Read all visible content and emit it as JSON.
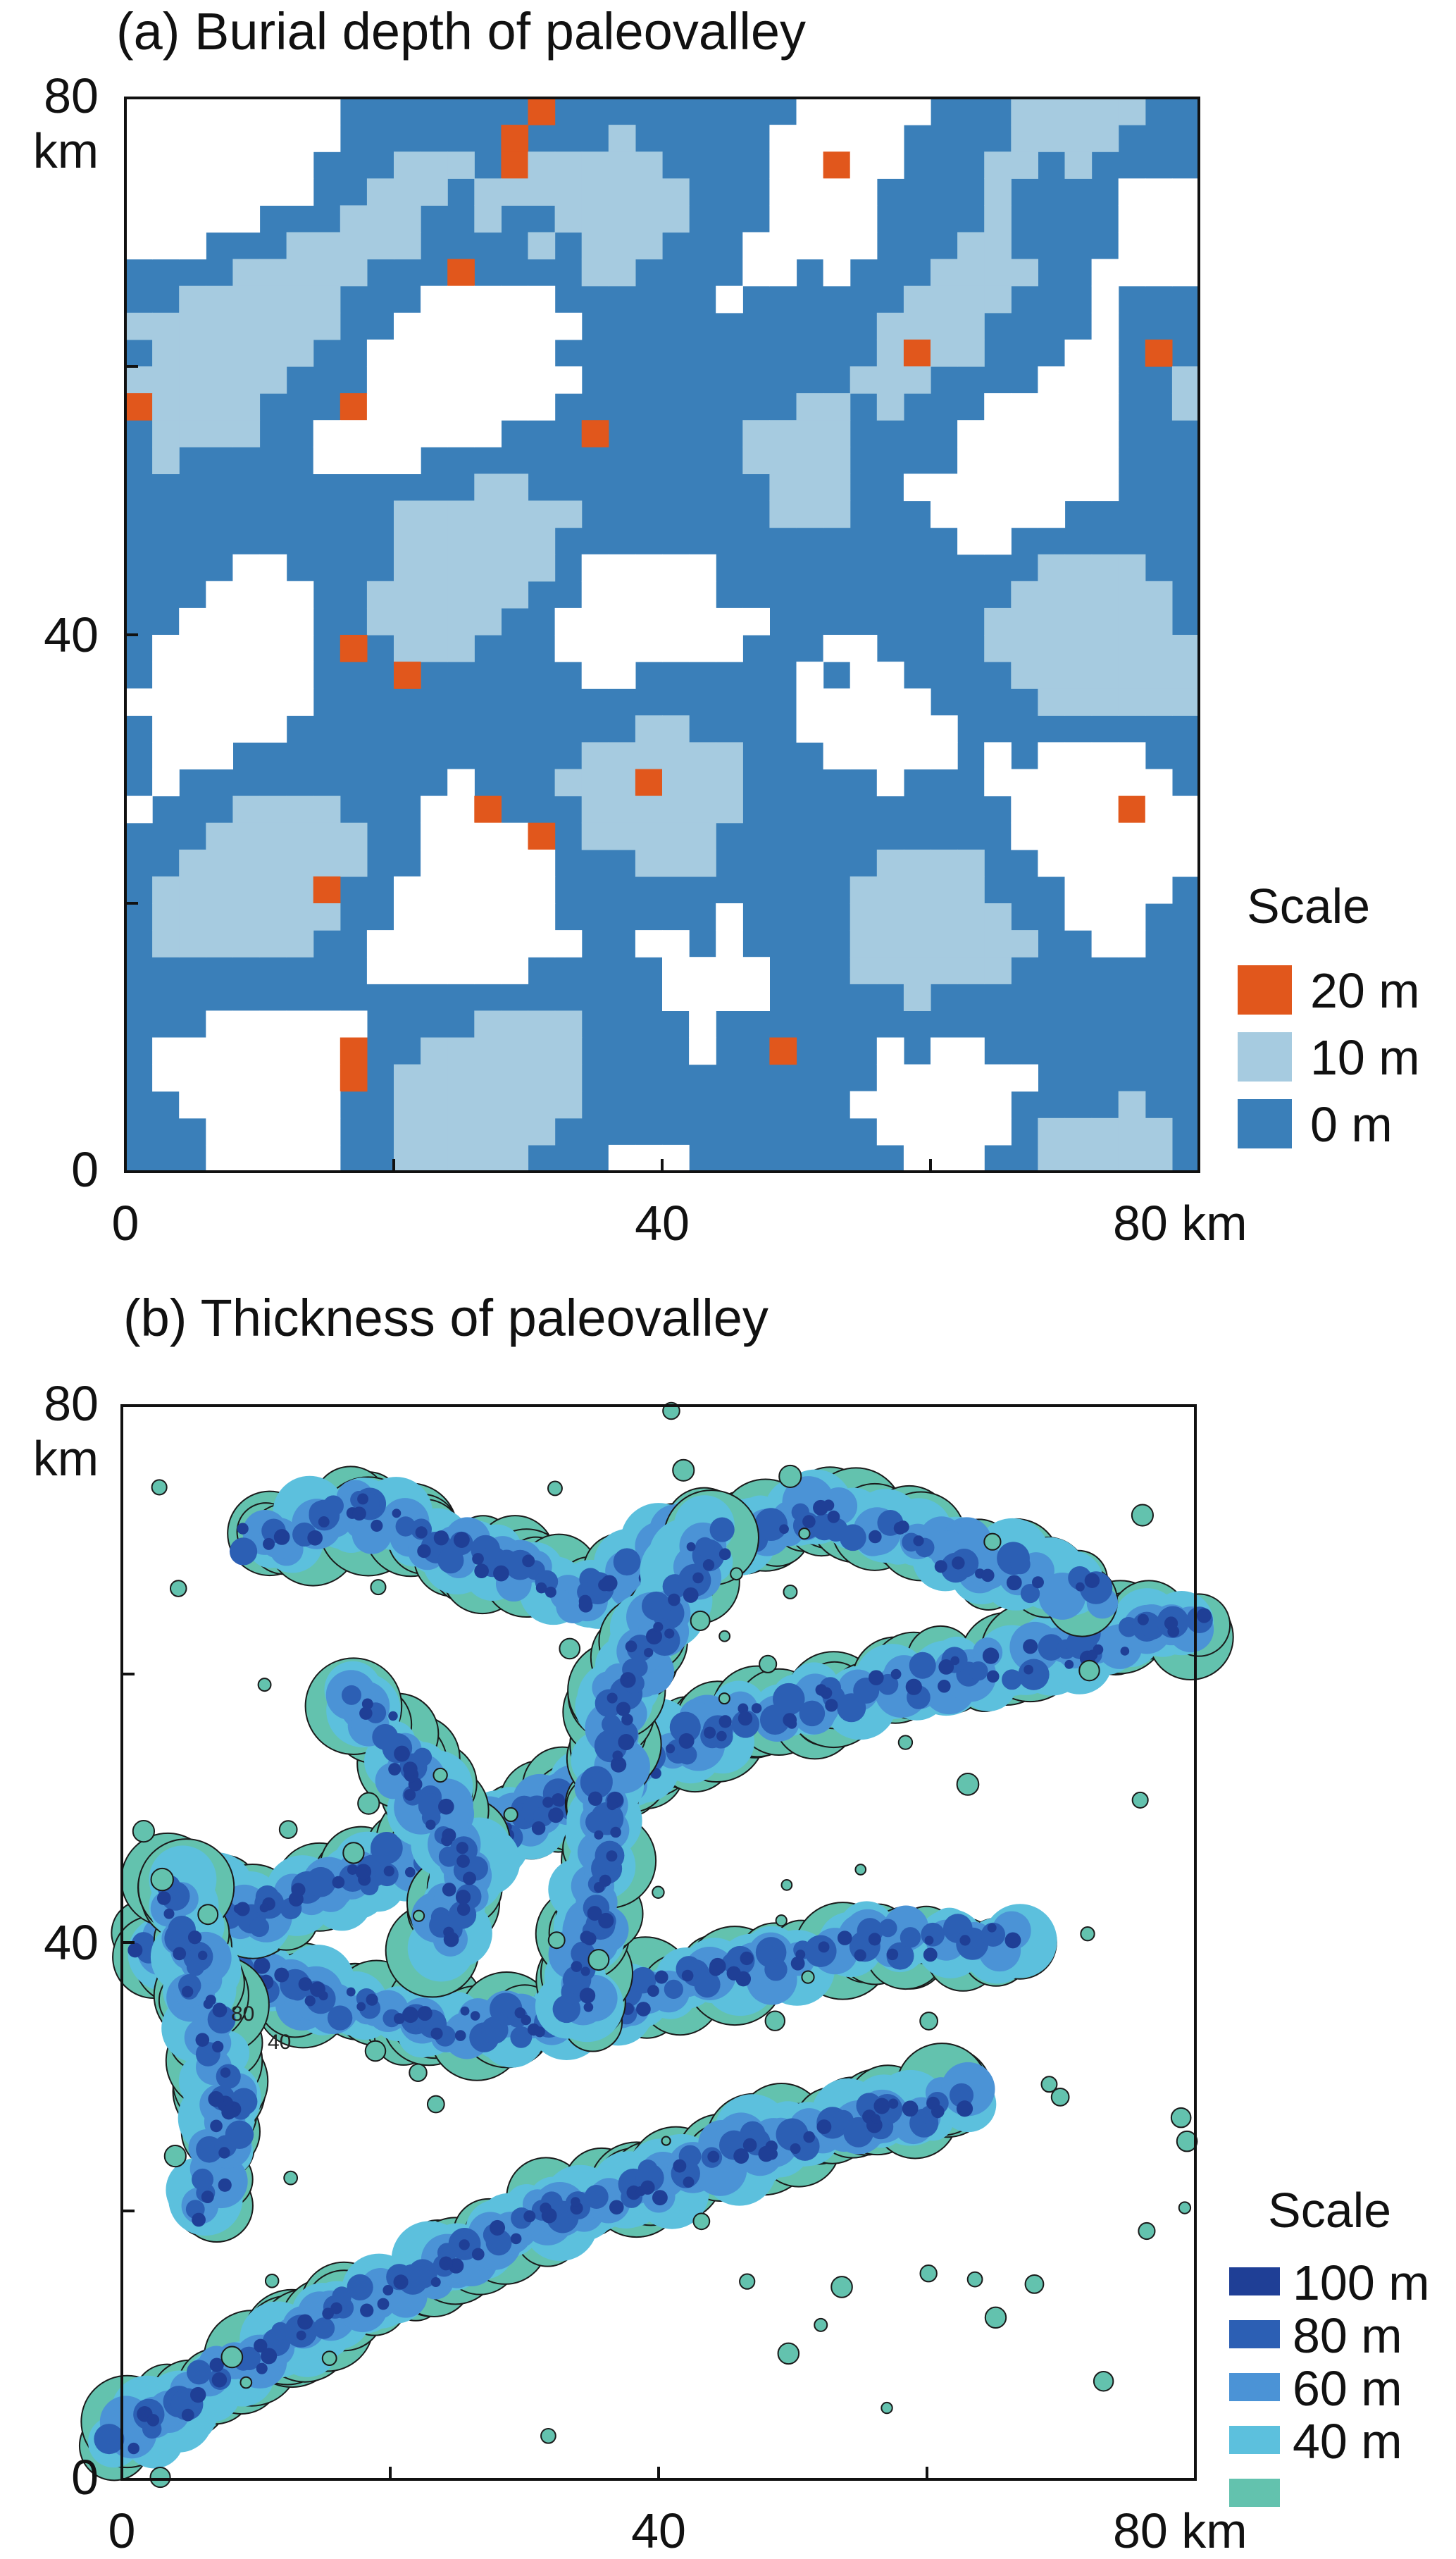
{
  "chart_data": [
    {
      "panel_id": "a",
      "type": "heatmap",
      "title": "(a) Burial depth of paleovalley",
      "x_unit": "km",
      "y_unit": "km",
      "xlim": [
        0,
        80
      ],
      "ylim": [
        0,
        80
      ],
      "x_tick_labels": [
        "0",
        "40",
        "80 km"
      ],
      "y_tick_labels": [
        "80",
        "km",
        "40",
        "0"
      ],
      "x_ticks": [
        0,
        20,
        40,
        60,
        80
      ],
      "y_ticks": [
        0,
        20,
        40,
        60,
        80
      ],
      "legend": {
        "title": "Scale",
        "placement": "right",
        "items": [
          {
            "label": "20 m",
            "value": 20,
            "color": "#e1571c"
          },
          {
            "label": "10 m",
            "value": 10,
            "color": "#a6cbe0"
          },
          {
            "label": "0 m",
            "value": 0,
            "color": "#3a7fb9"
          }
        ]
      },
      "grid_resolution": 40,
      "description_of_fill": "categorical burial-depth map; white = no paleovalley"
    },
    {
      "panel_id": "b",
      "type": "heatmap",
      "title": "(b) Thickness of paleovalley",
      "x_unit": "km",
      "y_unit": "km",
      "xlim": [
        0,
        80
      ],
      "ylim": [
        0,
        80
      ],
      "x_tick_labels": [
        "0",
        "40",
        "80 km"
      ],
      "y_tick_labels": [
        "80",
        "km",
        "40",
        "0"
      ],
      "x_ticks": [
        0,
        20,
        40,
        60,
        80
      ],
      "y_ticks": [
        0,
        20,
        40,
        60,
        80
      ],
      "contour_labels": [
        "80",
        "40"
      ],
      "legend": {
        "title": "Scale",
        "placement": "bottom-right",
        "items": [
          {
            "label": "100 m",
            "value": 100,
            "color": "#1f3f96"
          },
          {
            "label": "80 m",
            "value": 80,
            "color": "#2c5fb4"
          },
          {
            "label": "60 m",
            "value": 60,
            "color": "#4b93d6"
          },
          {
            "label": "40 m",
            "value": 40,
            "color": "#5cc0dd"
          },
          {
            "label": "",
            "value": 20,
            "color": "#63c2ae"
          }
        ]
      }
    }
  ]
}
